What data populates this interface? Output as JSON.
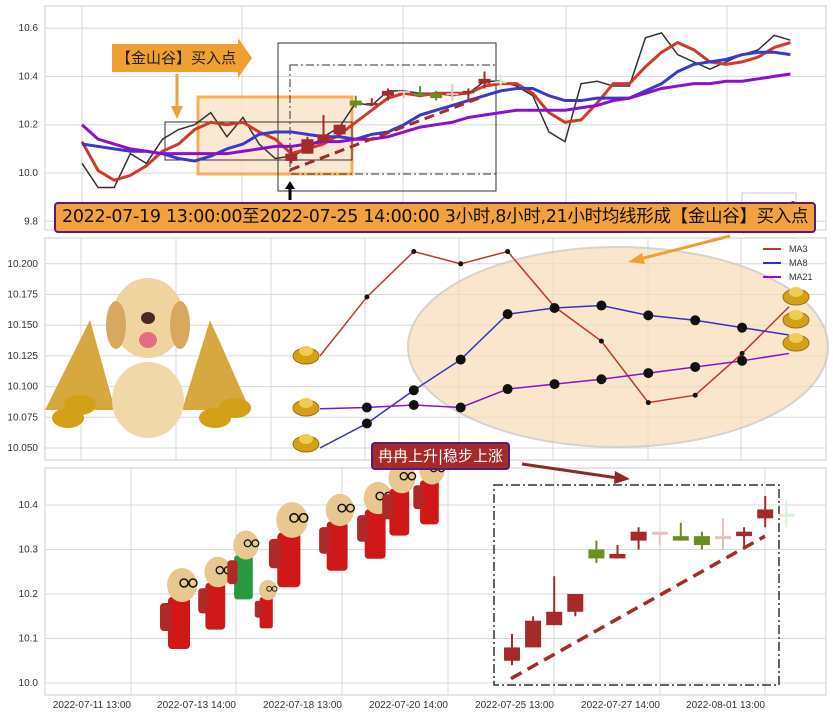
{
  "chart_data": [
    {
      "type": "line",
      "panel": "price-with-moving-averages",
      "ylim": [
        9.77,
        10.69
      ],
      "yticks": [
        "9.8",
        "10.0",
        "10.2",
        "10.4",
        "10.6"
      ],
      "grid": true,
      "series": [
        {
          "key": "close",
          "color": "#333333",
          "values": [
            10.04,
            9.94,
            9.94,
            10.08,
            10.04,
            10.14,
            10.18,
            10.2,
            10.25,
            10.15,
            10.23,
            10.12,
            10.06,
            10.07,
            10.1,
            10.15,
            10.19,
            10.29,
            10.28,
            10.34,
            10.34,
            10.33,
            10.33,
            10.32,
            10.33,
            10.38,
            10.38,
            10.36,
            10.32,
            10.17,
            10.13,
            10.37,
            10.38,
            10.36,
            10.36,
            10.56,
            10.58,
            10.49,
            10.46,
            10.43,
            10.46,
            10.49,
            10.51,
            10.57,
            10.55
          ]
        },
        {
          "key": "ma3",
          "color": "#d03a2a",
          "values": [
            10.13,
            10.01,
            9.97,
            9.99,
            10.03,
            10.09,
            10.12,
            10.18,
            10.21,
            10.2,
            10.21,
            10.17,
            10.14,
            10.08,
            10.1,
            10.12,
            10.16,
            10.21,
            10.26,
            10.31,
            10.33,
            10.32,
            10.33,
            10.33,
            10.33,
            10.36,
            10.37,
            10.37,
            10.33,
            10.25,
            10.21,
            10.22,
            10.29,
            10.37,
            10.37,
            10.44,
            10.5,
            10.54,
            10.51,
            10.46,
            10.45,
            10.46,
            10.48,
            10.52,
            10.54
          ]
        },
        {
          "key": "ma8",
          "color": "#3a3ac8",
          "values": [
            10.12,
            10.11,
            10.1,
            10.09,
            10.09,
            10.08,
            10.06,
            10.05,
            10.07,
            10.1,
            10.12,
            10.16,
            10.17,
            10.17,
            10.16,
            10.15,
            10.15,
            10.14,
            10.16,
            10.17,
            10.2,
            10.24,
            10.26,
            10.28,
            10.3,
            10.32,
            10.34,
            10.35,
            10.35,
            10.32,
            10.3,
            10.3,
            10.31,
            10.31,
            10.31,
            10.34,
            10.37,
            10.42,
            10.45,
            10.46,
            10.47,
            10.49,
            10.5,
            10.5,
            10.49
          ]
        },
        {
          "key": "ma21",
          "color": "#8a10d0",
          "values": [
            10.2,
            10.14,
            10.12,
            10.1,
            10.09,
            10.08,
            10.08,
            10.08,
            10.08,
            10.08,
            10.09,
            10.1,
            10.11,
            10.11,
            10.12,
            10.13,
            10.13,
            10.14,
            10.14,
            10.15,
            10.17,
            10.19,
            10.2,
            10.21,
            10.23,
            10.24,
            10.25,
            10.26,
            10.26,
            10.26,
            10.26,
            10.27,
            10.28,
            10.3,
            10.31,
            10.33,
            10.35,
            10.36,
            10.37,
            10.37,
            10.38,
            10.38,
            10.39,
            10.4,
            10.41
          ]
        }
      ],
      "annotations": {
        "buy_label": "【金山谷】买入点",
        "summary": "2022-07-19 13:00:00至2022-07-25 14:00:00 3小时,8小时,21小时均线形成【金山谷】买入点"
      }
    },
    {
      "type": "line",
      "panel": "moving-average-zoom",
      "ylim": [
        10.043,
        10.217
      ],
      "yticks": [
        "10.050",
        "10.075",
        "10.100",
        "10.125",
        "10.150",
        "10.175",
        "10.200"
      ],
      "grid": true,
      "legend": "top-right",
      "series": [
        {
          "name": "MA3",
          "color": "#c0392b",
          "values": [
            10.125,
            10.173,
            10.21,
            10.2,
            10.21,
            10.165,
            10.137,
            10.087,
            10.093,
            10.127,
            10.165
          ]
        },
        {
          "name": "MA8",
          "color": "#3434c0",
          "values": [
            10.05,
            10.07,
            10.097,
            10.122,
            10.159,
            10.164,
            10.166,
            10.158,
            10.154,
            10.148,
            10.142
          ]
        },
        {
          "name": "MA21",
          "color": "#8a10d0",
          "values": [
            10.082,
            10.083,
            10.085,
            10.083,
            10.098,
            10.102,
            10.106,
            10.111,
            10.116,
            10.121,
            10.127
          ]
        }
      ],
      "annotations": {
        "rise_label": "冉冉上升|稳步上涨"
      }
    },
    {
      "type": "candlestick",
      "panel": "candles",
      "ylim": [
        9.98,
        10.48
      ],
      "yticks": [
        "10.0",
        "10.1",
        "10.2",
        "10.3",
        "10.4"
      ],
      "xticks": [
        "2022-07-11 13:00",
        "2022-07-13 14:00",
        "2022-07-18 13:00",
        "2022-07-20 14:00",
        "2022-07-25 13:00",
        "2022-07-27 14:00",
        "2022-08-01 13:00"
      ],
      "grid": true,
      "candles": [
        {
          "open": 10.05,
          "close": 10.08,
          "low": 10.04,
          "high": 10.11,
          "color": "#a52a2a"
        },
        {
          "open": 10.08,
          "close": 10.14,
          "low": 10.08,
          "high": 10.15,
          "color": "#a52a2a"
        },
        {
          "open": 10.13,
          "close": 10.16,
          "low": 10.13,
          "high": 10.24,
          "color": "#a52a2a"
        },
        {
          "open": 10.16,
          "close": 10.2,
          "low": 10.15,
          "high": 10.2,
          "color": "#a52a2a"
        },
        {
          "open": 10.3,
          "close": 10.28,
          "low": 10.27,
          "high": 10.32,
          "color": "#6b8e23"
        },
        {
          "open": 10.28,
          "close": 10.29,
          "low": 10.28,
          "high": 10.31,
          "color": "#a52a2a"
        },
        {
          "open": 10.32,
          "close": 10.34,
          "low": 10.3,
          "high": 10.35,
          "color": "#a52a2a"
        },
        {
          "open": 10.34,
          "close": 10.34,
          "low": 10.31,
          "high": 10.34,
          "color": "#e8c0c0"
        },
        {
          "open": 10.33,
          "close": 10.32,
          "low": 10.32,
          "high": 10.36,
          "color": "#6b8e23"
        },
        {
          "open": 10.33,
          "close": 10.31,
          "low": 10.3,
          "high": 10.34,
          "color": "#6b8e23"
        },
        {
          "open": 10.33,
          "close": 10.33,
          "low": 10.3,
          "high": 10.37,
          "color": "#e8c0c0"
        },
        {
          "open": 10.33,
          "close": 10.34,
          "low": 10.3,
          "high": 10.35,
          "color": "#a52a2a"
        },
        {
          "open": 10.37,
          "close": 10.39,
          "low": 10.35,
          "high": 10.42,
          "color": "#a52a2a"
        },
        {
          "open": 10.38,
          "close": 10.38,
          "low": 10.35,
          "high": 10.41,
          "color": "#d8f0d8"
        }
      ],
      "trendline": [
        10.01,
        10.33
      ]
    }
  ]
}
